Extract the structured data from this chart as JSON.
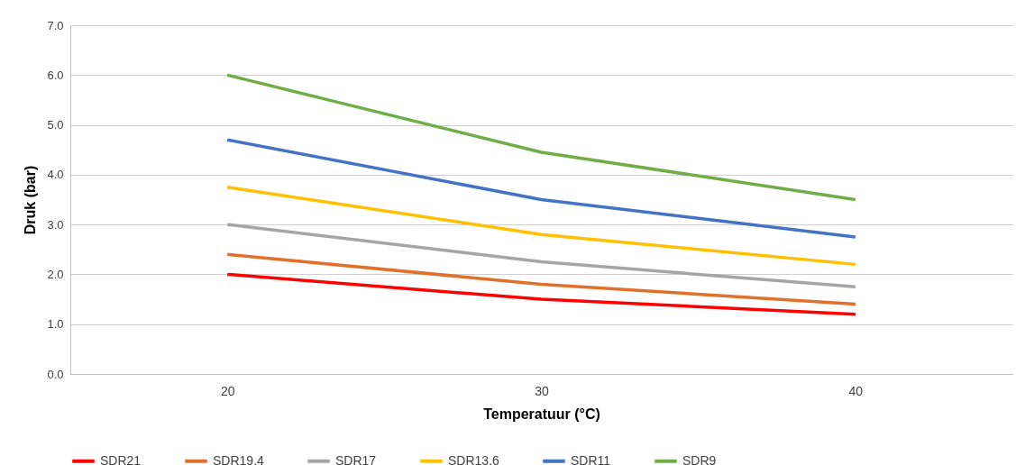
{
  "chart_data": {
    "type": "line",
    "xlabel": "Temperatuur (°C)",
    "ylabel": "Druk (bar)",
    "categories": [
      "20",
      "30",
      "40"
    ],
    "series": [
      {
        "name": "SDR21",
        "color": "#ff0000",
        "values": [
          2.0,
          1.5,
          1.2
        ]
      },
      {
        "name": "SDR19.4",
        "color": "#e0702a",
        "values": [
          2.4,
          1.8,
          1.4
        ]
      },
      {
        "name": "SDR17",
        "color": "#a5a5a5",
        "values": [
          3.0,
          2.25,
          1.75
        ]
      },
      {
        "name": "SDR13.6",
        "color": "#ffc000",
        "values": [
          3.75,
          2.8,
          2.2
        ]
      },
      {
        "name": "SDR11",
        "color": "#4472c4",
        "values": [
          4.7,
          3.5,
          2.75
        ]
      },
      {
        "name": "SDR9",
        "color": "#70ad47",
        "values": [
          6.0,
          4.45,
          3.5
        ]
      }
    ],
    "ylim": [
      0,
      7
    ],
    "yticks": [
      {
        "value": 0,
        "label": "0.0"
      },
      {
        "value": 1,
        "label": "1.0"
      },
      {
        "value": 2,
        "label": "2.0"
      },
      {
        "value": 3,
        "label": "3.0"
      },
      {
        "value": 4,
        "label": "4.0"
      },
      {
        "value": 5,
        "label": "5.0"
      },
      {
        "value": 6,
        "label": "6.0"
      },
      {
        "value": 7,
        "label": "7.0"
      }
    ],
    "grid": "y",
    "legend": "bottom",
    "marker": "none",
    "line_style": "solid"
  }
}
